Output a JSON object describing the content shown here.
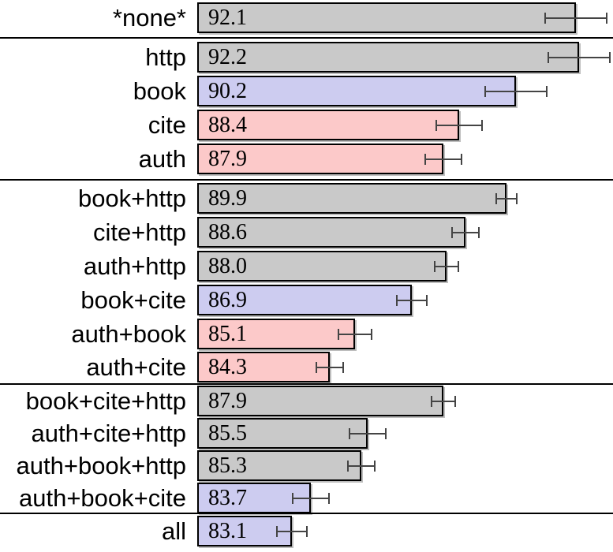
{
  "chart_data": {
    "type": "bar",
    "orientation": "horizontal",
    "title": "",
    "xlabel": "",
    "ylabel": "",
    "axis": {
      "value_min": 80.1,
      "value_max": 93.3,
      "axis_lines_visible": false,
      "grid": false
    },
    "value_labels_inside_bars": true,
    "error_bars": true,
    "palette": {
      "gray": "#c9c9c9",
      "blue": "#cdccf0",
      "pink": "#fcc9c9"
    },
    "bar_border_color": "#000000",
    "separator_color": "#000000",
    "error_bar_color": "#444444",
    "rows": [
      {
        "label": "*none*",
        "value": 92.1,
        "display": "92.1",
        "error": 1.0,
        "color": "gray",
        "group": 0
      },
      {
        "label": "http",
        "value": 92.2,
        "display": "92.2",
        "error": 1.0,
        "color": "gray",
        "group": 1
      },
      {
        "label": "book",
        "value": 90.2,
        "display": "90.2",
        "error": 1.0,
        "color": "blue",
        "group": 1
      },
      {
        "label": "cite",
        "value": 88.4,
        "display": "88.4",
        "error": 0.75,
        "color": "pink",
        "group": 1
      },
      {
        "label": "auth",
        "value": 87.9,
        "display": "87.9",
        "error": 0.6,
        "color": "pink",
        "group": 1
      },
      {
        "label": "book+http",
        "value": 89.9,
        "display": "89.9",
        "error": 0.35,
        "color": "gray",
        "group": 2
      },
      {
        "label": "cite+http",
        "value": 88.6,
        "display": "88.6",
        "error": 0.45,
        "color": "gray",
        "group": 2
      },
      {
        "label": "auth+http",
        "value": 88.0,
        "display": "88.0",
        "error": 0.4,
        "color": "gray",
        "group": 2
      },
      {
        "label": "book+cite",
        "value": 86.9,
        "display": "86.9",
        "error": 0.5,
        "color": "blue",
        "group": 2
      },
      {
        "label": "auth+book",
        "value": 85.1,
        "display": "85.1",
        "error": 0.55,
        "color": "pink",
        "group": 2
      },
      {
        "label": "auth+cite",
        "value": 84.3,
        "display": "84.3",
        "error": 0.45,
        "color": "pink",
        "group": 2
      },
      {
        "label": "book+cite+http",
        "value": 87.9,
        "display": "87.9",
        "error": 0.4,
        "color": "gray",
        "group": 3
      },
      {
        "label": "auth+cite+http",
        "value": 85.5,
        "display": "85.5",
        "error": 0.6,
        "color": "gray",
        "group": 3
      },
      {
        "label": "auth+book+http",
        "value": 85.3,
        "display": "85.3",
        "error": 0.45,
        "color": "gray",
        "group": 3
      },
      {
        "label": "auth+book+cite",
        "value": 83.7,
        "display": "83.7",
        "error": 0.6,
        "color": "blue",
        "group": 3
      },
      {
        "label": "all",
        "value": 83.1,
        "display": "83.1",
        "error": 0.5,
        "color": "blue",
        "group": 4
      }
    ],
    "separators_after_rows": [
      0,
      4,
      10,
      14
    ]
  }
}
